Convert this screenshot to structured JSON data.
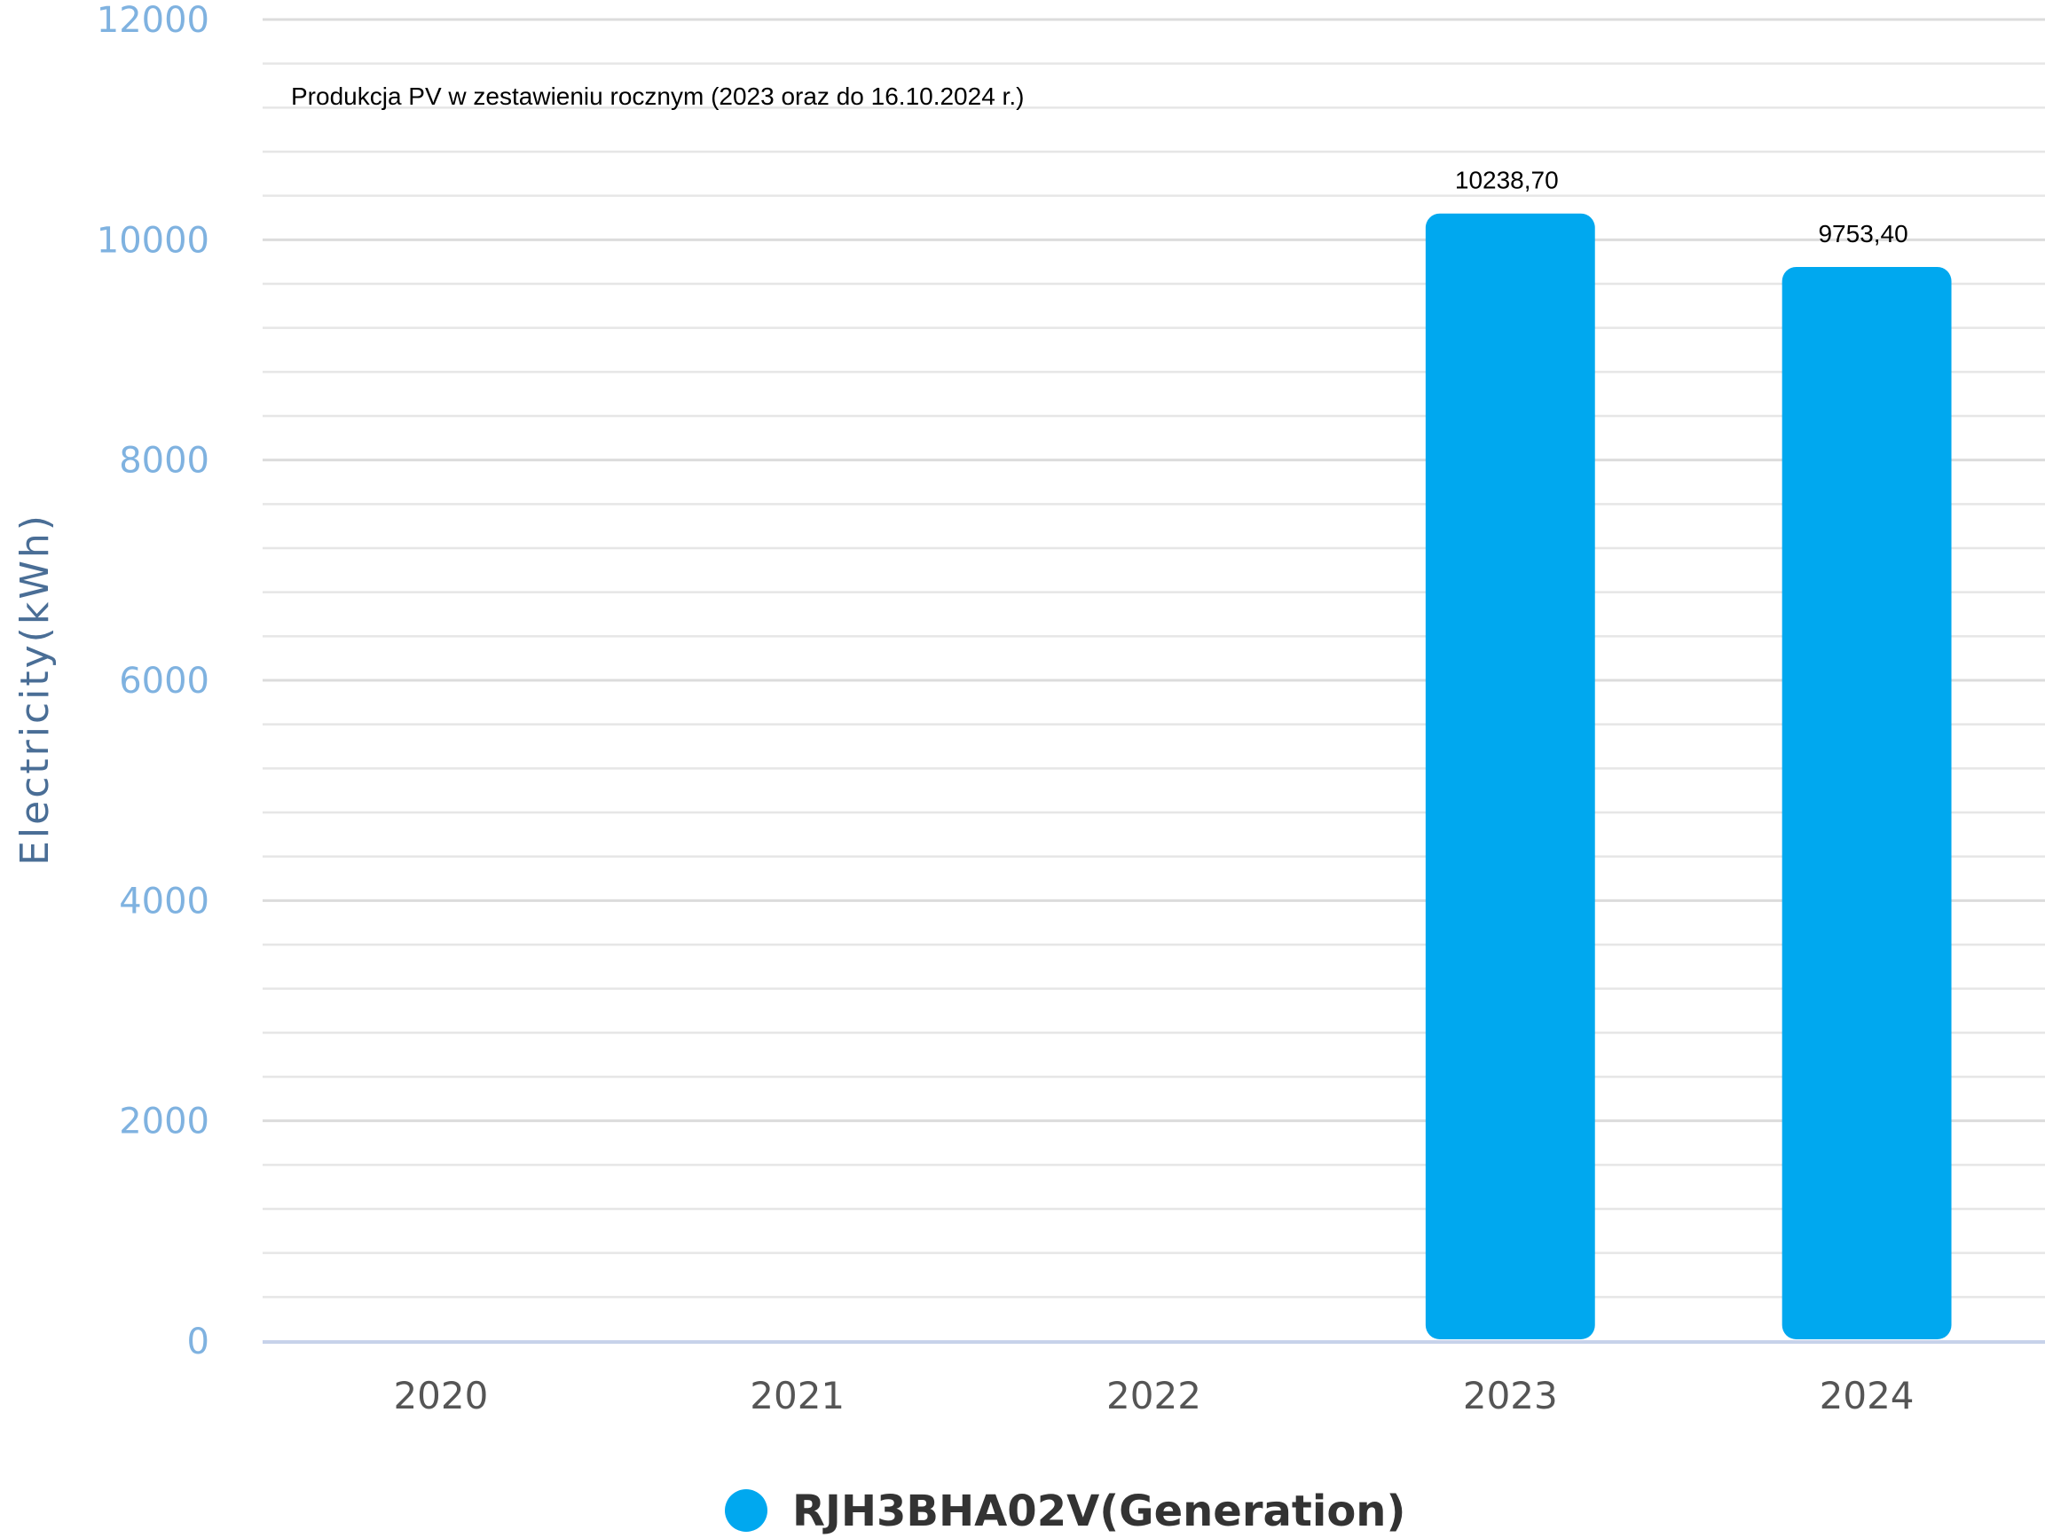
{
  "chart_data": {
    "type": "bar",
    "annotation": "Produkcja PV w zestawieniu rocznym (2023 oraz do 16.10.2024 r.)",
    "ylabel": "Electricity(kWh)",
    "xlabel": "",
    "categories": [
      "2020",
      "2021",
      "2022",
      "2023",
      "2024"
    ],
    "series": [
      {
        "name": "RJH3BHA02V(Generation)",
        "values": [
          0,
          0,
          0,
          10238.7,
          9753.4
        ],
        "data_labels": [
          "",
          "",
          "",
          "10238,70",
          "9753,40"
        ],
        "color": "#00a8ef"
      }
    ],
    "ylim": [
      0,
      12000
    ],
    "yticks": [
      "0",
      "2000",
      "4000",
      "6000",
      "8000",
      "10000",
      "12000"
    ],
    "grid": true,
    "minor_grid": true,
    "legend_position": "bottom-center"
  },
  "colors": {
    "ytick": "#7fb2e0",
    "ylabel": "#4a6e96",
    "xtick": "#555555",
    "grid": "#e6e6e6",
    "axis": "#c7d2ea",
    "legend_text": "#333333"
  }
}
